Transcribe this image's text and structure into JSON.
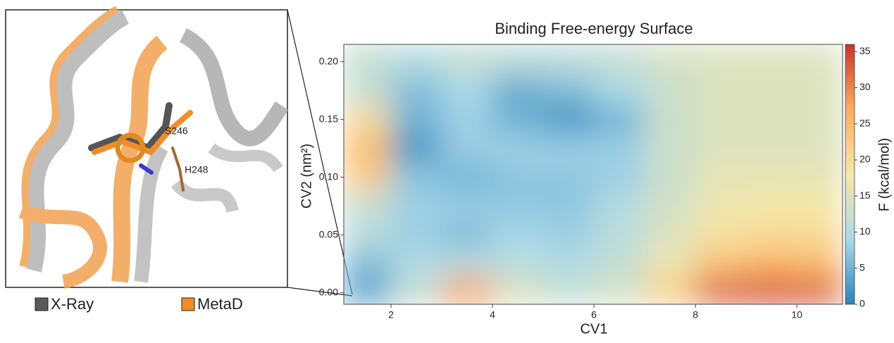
{
  "chart_data": {
    "type": "heatmap",
    "title": "Binding Free-energy Surface",
    "x_label": "CV1",
    "y_label": "CV2 (nm²)",
    "colorbar_label": "F (kcal/mol)",
    "x": [
      1.5,
      2.5,
      3.5,
      4.5,
      5.5,
      6.5,
      7.5,
      8.5,
      9.5,
      10.5
    ],
    "y": [
      0.0,
      0.025,
      0.05,
      0.075,
      0.1,
      0.125,
      0.15,
      0.175,
      0.2
    ],
    "z": [
      [
        3,
        12,
        28,
        15,
        12,
        14,
        22,
        33,
        34,
        33
      ],
      [
        6,
        10,
        11,
        11,
        10,
        12,
        17,
        24,
        26,
        25
      ],
      [
        11,
        8,
        6,
        9,
        8,
        11,
        15,
        19,
        20,
        20
      ],
      [
        12,
        8,
        8,
        7,
        7,
        10,
        14,
        17,
        18,
        18
      ],
      [
        22,
        7,
        5,
        7,
        7,
        8,
        13,
        16,
        16,
        16
      ],
      [
        25,
        2,
        8,
        8,
        8,
        8,
        13,
        15,
        15,
        15
      ],
      [
        20,
        5,
        8,
        5,
        2,
        5,
        13,
        15,
        15,
        15
      ],
      [
        12,
        6,
        9,
        4,
        6,
        9,
        13,
        15,
        15,
        15
      ],
      [
        12,
        10,
        12,
        11,
        11,
        12,
        14,
        15,
        15,
        15
      ]
    ],
    "xlim": [
      1.07,
      10.9
    ],
    "ylim": [
      -0.01,
      0.215
    ],
    "xticks": [
      2,
      4,
      6,
      8,
      10
    ],
    "yticks": [
      {
        "value": 0,
        "label": "0.00"
      },
      {
        "value": 0.05,
        "label": "0.05"
      },
      {
        "value": 0.1,
        "label": "0.10"
      },
      {
        "value": 0.15,
        "label": "0.15"
      },
      {
        "value": 0.2,
        "label": "0.20"
      }
    ],
    "zlim": [
      0,
      36
    ],
    "zticks": [
      0,
      5,
      10,
      15,
      20,
      25,
      30,
      35
    ],
    "colormap": [
      "#2b83ba",
      "#abd9e9",
      "#f5e7a8",
      "#fdae61",
      "#c8352a"
    ]
  },
  "structure_panel": {
    "residue_labels": [
      "S246",
      "H248"
    ],
    "legend": [
      {
        "name": "X-Ray",
        "color": "#5a5a5a"
      },
      {
        "name": "MetaD",
        "color": "#f28c28"
      }
    ]
  }
}
